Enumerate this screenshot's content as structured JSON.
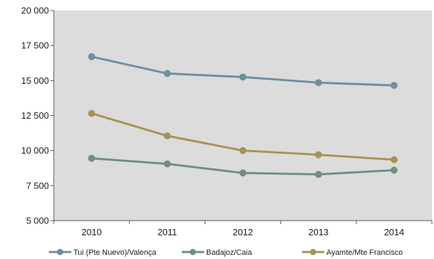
{
  "chart_data": {
    "type": "line",
    "title": "",
    "xlabel": "",
    "ylabel": "",
    "categories": [
      "2010",
      "2011",
      "2012",
      "2013",
      "2014"
    ],
    "ylim": [
      5000,
      20000
    ],
    "yticks": [
      5000,
      7500,
      10000,
      12500,
      15000,
      17500,
      20000
    ],
    "ytick_labels": [
      "5 000",
      "7 500",
      "10 000",
      "12 500",
      "15 000",
      "17 500",
      "20 000"
    ],
    "grid": false,
    "plot_background": "#dcdcdc",
    "legend_position": "bottom",
    "series": [
      {
        "name": "Tui (Pte Nuevo)/Valença",
        "color": "#6f8fa0",
        "values": [
          16700,
          15500,
          15250,
          14850,
          14650
        ]
      },
      {
        "name": "Badajoz/Caia",
        "color": "#708f7e",
        "values": [
          9450,
          9050,
          8400,
          8300,
          8600
        ]
      },
      {
        "name": "Ayamte/Mte Francisco",
        "color": "#a89354",
        "values": [
          12650,
          11050,
          10000,
          9700,
          9350
        ]
      }
    ]
  }
}
